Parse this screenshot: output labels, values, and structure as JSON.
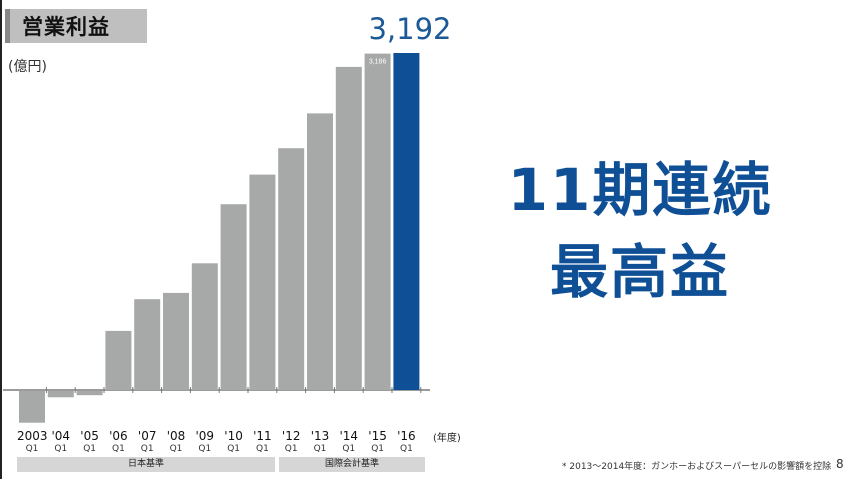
{
  "slide": {
    "title": "営業利益",
    "unit": "(億円)",
    "headline_value": "3,192",
    "message_line1": "11期連続",
    "message_line2": "最高益",
    "axis_unit": "(年度)",
    "footnote": "* 2013〜2014年度：ガンホーおよびスーパーセルの影響額を控除",
    "page_number": "8"
  },
  "standards": [
    {
      "label": "日本基準"
    },
    {
      "label": "国際会計基準"
    }
  ],
  "colors": {
    "bar_gray": "#a7a9a9",
    "bar_highlight": "#0f4f95",
    "title_box": "#bfbfbf",
    "headline": "#1b5a96"
  },
  "chart_data": {
    "type": "bar",
    "title": "営業利益",
    "ylabel": "(億円)",
    "xlabel": "(年度)",
    "ylim": [
      -300,
      3500
    ],
    "categories": [
      "2003 Q1",
      "'04 Q1",
      "'05 Q1",
      "'06 Q1",
      "'07 Q1",
      "'08 Q1",
      "'09 Q1",
      "'10 Q1",
      "'11 Q1",
      "'12 Q1",
      "'13 Q1",
      "'14 Q1",
      "'15 Q1",
      "'16 Q1"
    ],
    "tick_labels": [
      {
        "year": "2003",
        "q": "Q1"
      },
      {
        "year": "'04",
        "q": "Q1"
      },
      {
        "year": "'05",
        "q": "Q1"
      },
      {
        "year": "'06",
        "q": "Q1"
      },
      {
        "year": "'07",
        "q": "Q1"
      },
      {
        "year": "'08",
        "q": "Q1"
      },
      {
        "year": "'09",
        "q": "Q1"
      },
      {
        "year": "'10",
        "q": "Q1"
      },
      {
        "year": "'11",
        "q": "Q1"
      },
      {
        "year": "'12",
        "q": "Q1"
      },
      {
        "year": "'13",
        "q": "Q1"
      },
      {
        "year": "'14",
        "q": "Q1"
      },
      {
        "year": "'15",
        "q": "Q1"
      },
      {
        "year": "'16",
        "q": "Q1"
      }
    ],
    "values": [
      -300,
      -60,
      -40,
      560,
      860,
      920,
      1200,
      1760,
      2040,
      2290,
      2620,
      3060,
      3186,
      3192
    ],
    "data_labels": {
      "12": "3,186"
    },
    "highlight_index": 13,
    "grid": false
  }
}
